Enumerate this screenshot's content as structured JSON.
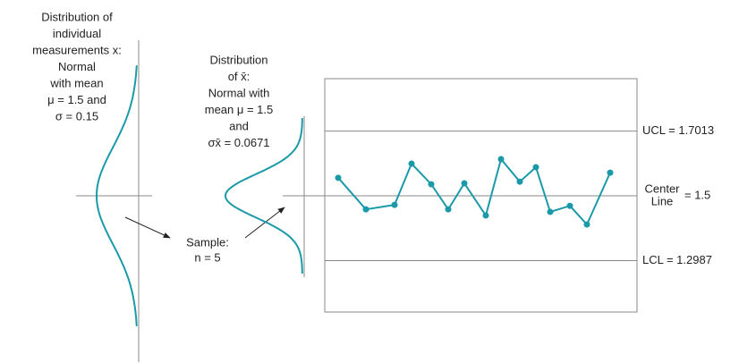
{
  "chart_data": {
    "type": "line",
    "categories": [
      null,
      null,
      null,
      null,
      null,
      null,
      null,
      null,
      null,
      null,
      null,
      null,
      null,
      null,
      null
    ],
    "series": [
      {
        "color": "#1a9aa8",
        "values": [
          1.556,
          1.458,
          1.472,
          1.6,
          1.536,
          1.458,
          1.539,
          1.439,
          1.614,
          1.544,
          1.589,
          1.45,
          1.469,
          1.411,
          1.572
        ]
      }
    ],
    "ylim": [
      1.139,
      1.864
    ],
    "reference_lines": [
      {
        "value": 1.7013,
        "label": "UCL = 1.7013"
      },
      {
        "value": 1.5,
        "label": [
          "Center",
          "Line"
        ],
        "value_label": "= 1.5"
      },
      {
        "value": 1.2987,
        "label": "LCL = 1.2987"
      }
    ],
    "distributions": [
      {
        "mean": 1.5,
        "sigma": 0.15,
        "text": [
          "Distribution of",
          "individual",
          "measurements x:",
          "Normal",
          "with mean",
          "μ = 1.5 and",
          "σ = 0.15"
        ]
      },
      {
        "mean": 1.5,
        "sigma": 0.0671,
        "text": [
          "Distribution",
          "of x̄:",
          "Normal with",
          "mean μ = 1.5",
          "and",
          "σx̄ = 0.0671"
        ]
      }
    ],
    "sample_text": [
      "Sample:",
      "n = 5"
    ]
  }
}
